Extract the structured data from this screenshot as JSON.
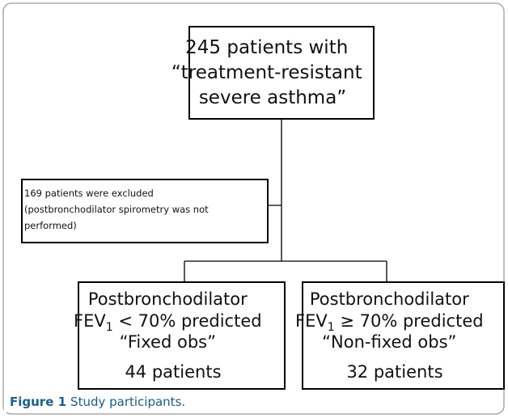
{
  "nodes": [
    {
      "lines": [
        "245 patients with",
        "“treatment-resistant",
        "severe asthma”"
      ]
    },
    {
      "lines": [
        "169 patients were excluded",
        "(postbronchodilator spirometry was not",
        "performed)"
      ]
    },
    {
      "lines": [
        "Postbronchodilator",
        {
          "text": "FEV",
          "sub": "1",
          "rest": " < 70% predicted"
        },
        "“Fixed obs”",
        "44 patients"
      ]
    },
    {
      "lines": [
        "Postbronchodilator",
        {
          "text": "FEV",
          "sub": "1",
          "rest": " ≥ 70% predicted"
        },
        "“Non-fixed obs”",
        "32 patients"
      ]
    }
  ],
  "caption": {
    "label": "Figure 1",
    "text": "Study participants."
  }
}
